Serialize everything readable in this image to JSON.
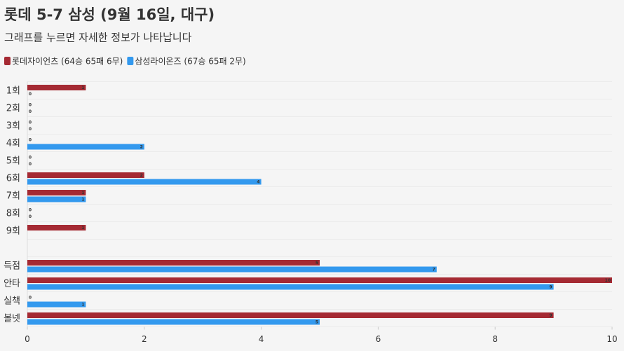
{
  "chart_data": {
    "type": "bar",
    "orientation": "horizontal",
    "title": "롯데 5-7 삼성 (9월 16일, 대구)",
    "subtitle": "그래프를 누르면 자세한 정보가 나타납니다",
    "categories": [
      "1회",
      "2회",
      "3회",
      "4회",
      "5회",
      "6회",
      "7회",
      "8회",
      "9회",
      null,
      "득점",
      "안타",
      "실책",
      "볼넷"
    ],
    "series": [
      {
        "name": "롯데자이언츠 (64승 65패 6무)",
        "color": "#a52a33",
        "values": [
          1,
          0,
          0,
          0,
          0,
          2,
          1,
          0,
          1,
          null,
          5,
          10,
          0,
          9
        ]
      },
      {
        "name": "삼성라이온즈 (67승 65패 2무)",
        "color": "#3399ee",
        "values": [
          0,
          0,
          0,
          2,
          0,
          4,
          1,
          0,
          null,
          null,
          7,
          9,
          1,
          5
        ]
      }
    ],
    "xlim": [
      0,
      10
    ],
    "xticks": [
      0,
      2,
      4,
      6,
      8,
      10
    ],
    "legend": "top-left",
    "grid": false
  }
}
